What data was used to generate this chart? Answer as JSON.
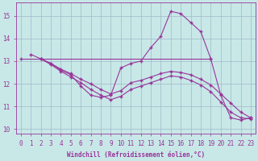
{
  "xlabel": "Windchill (Refroidissement éolien,°C)",
  "xlim": [
    -0.5,
    23.5
  ],
  "ylim": [
    9.8,
    15.6
  ],
  "yticks": [
    10,
    11,
    12,
    13,
    14,
    15
  ],
  "xticks": [
    0,
    1,
    2,
    3,
    4,
    5,
    6,
    7,
    8,
    9,
    10,
    11,
    12,
    13,
    14,
    15,
    16,
    17,
    18,
    19,
    20,
    21,
    22,
    23
  ],
  "bg_color": "#c8e8e8",
  "line_color": "#993399",
  "grid_color": "#a0b8c8",
  "lines": [
    {
      "x": [
        0,
        19
      ],
      "y": [
        13.1,
        13.1
      ]
    },
    {
      "x": [
        1,
        2,
        3,
        4,
        5,
        6,
        7,
        8,
        9,
        10,
        11,
        12,
        13,
        14,
        15,
        16,
        17,
        18,
        19,
        20,
        21,
        22,
        23
      ],
      "y": [
        13.3,
        13.1,
        12.9,
        12.6,
        12.4,
        11.9,
        11.5,
        11.4,
        11.5,
        12.7,
        12.9,
        13.0,
        13.6,
        14.1,
        15.2,
        15.1,
        14.7,
        14.3,
        13.1,
        11.5,
        10.5,
        10.4,
        10.5
      ]
    },
    {
      "x": [
        2,
        3,
        4,
        5,
        6,
        7,
        8,
        9,
        10,
        11,
        12,
        13,
        14,
        15,
        16,
        17,
        18,
        19,
        20,
        21,
        22,
        23
      ],
      "y": [
        13.1,
        12.85,
        12.55,
        12.3,
        12.05,
        11.75,
        11.5,
        11.3,
        11.45,
        11.75,
        11.9,
        12.05,
        12.2,
        12.35,
        12.3,
        12.15,
        11.95,
        11.65,
        11.2,
        10.75,
        10.5,
        10.45
      ]
    },
    {
      "x": [
        2,
        3,
        4,
        5,
        6,
        7,
        8,
        9,
        10,
        11,
        12,
        13,
        14,
        15,
        16,
        17,
        18,
        19,
        20,
        21,
        22,
        23
      ],
      "y": [
        13.1,
        12.9,
        12.65,
        12.45,
        12.2,
        12.0,
        11.75,
        11.55,
        11.7,
        12.05,
        12.15,
        12.3,
        12.45,
        12.55,
        12.5,
        12.4,
        12.2,
        11.95,
        11.55,
        11.15,
        10.75,
        10.5
      ]
    }
  ]
}
